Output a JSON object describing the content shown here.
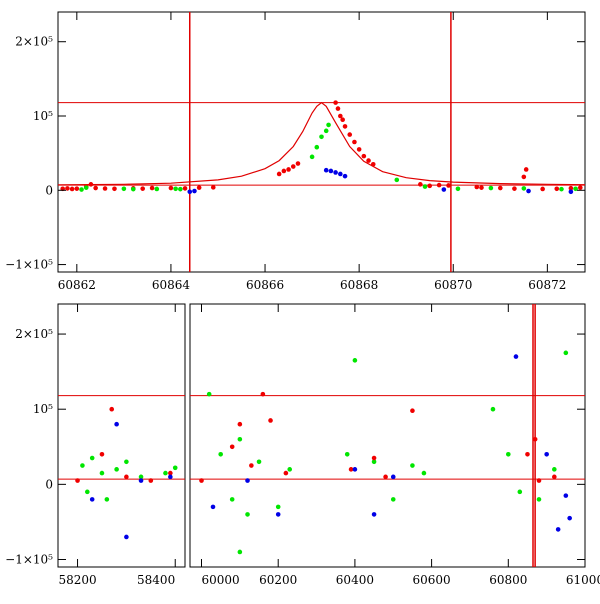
{
  "chart_data": [
    {
      "type": "scatter",
      "xlim": [
        60861.6,
        60872.8
      ],
      "ylim": [
        -110000,
        240000
      ],
      "x_ticks": [
        60862,
        60864,
        60866,
        60868,
        60870,
        60872
      ],
      "x_tick_labels": [
        "60862",
        "60864",
        "60866",
        "60868",
        "60870",
        "60872"
      ],
      "y_ticks": [
        -100000,
        0,
        100000,
        200000
      ],
      "y_tick_labels": [
        "−1×10⁵",
        "0",
        "10⁵",
        "2×10⁵"
      ],
      "colors": {
        "g": "#00e600",
        "r": "#f00000",
        "b": "#0000e6",
        "model": "#e00000"
      },
      "hlines": [
        118000,
        7000
      ],
      "vlines": [
        60864.4,
        60869.95
      ],
      "model_curve": {
        "type": "lorentzian",
        "x": [
          60861.6,
          60863,
          60864,
          60865,
          60865.5,
          60866,
          60866.3,
          60866.6,
          60866.8,
          60867,
          60867.1,
          60867.2,
          60867.3,
          60867.5,
          60867.8,
          60868.1,
          60868.5,
          60869,
          60869.5,
          60870,
          60871,
          60872,
          60872.8
        ],
        "y": [
          7400,
          8000,
          9500,
          14000,
          19000,
          29000,
          40000,
          59000,
          79000,
          104000,
          113000,
          118000,
          113000,
          91000,
          59000,
          39000,
          25000,
          17000,
          13000,
          11000,
          9000,
          8000,
          7500
        ]
      },
      "series": [
        {
          "color": "r",
          "points": [
            [
              60861.7,
              2000
            ],
            [
              60861.8,
              2500
            ],
            [
              60861.9,
              1800
            ],
            [
              60862.0,
              2200
            ],
            [
              60862.2,
              5000
            ],
            [
              60862.3,
              8000
            ],
            [
              60862.4,
              3000
            ],
            [
              60862.6,
              2400
            ],
            [
              60862.8,
              2000
            ],
            [
              60863.2,
              2600
            ],
            [
              60863.4,
              2200
            ],
            [
              60863.6,
              3000
            ],
            [
              60864.0,
              3000
            ],
            [
              60864.3,
              2500
            ],
            [
              60864.6,
              3500
            ],
            [
              60864.9,
              4000
            ],
            [
              60866.3,
              22000
            ],
            [
              60866.4,
              26000
            ],
            [
              60866.5,
              28000
            ],
            [
              60866.6,
              32000
            ],
            [
              60866.7,
              36000
            ],
            [
              60867.5,
              118000
            ],
            [
              60867.55,
              110000
            ],
            [
              60867.6,
              100000
            ],
            [
              60867.65,
              95000
            ],
            [
              60867.7,
              86000
            ],
            [
              60867.8,
              75000
            ],
            [
              60867.9,
              65000
            ],
            [
              60868.0,
              55000
            ],
            [
              60868.1,
              46000
            ],
            [
              60868.2,
              40000
            ],
            [
              60868.3,
              35000
            ],
            [
              60869.3,
              8000
            ],
            [
              60869.5,
              6000
            ],
            [
              60869.7,
              7000
            ],
            [
              60869.9,
              6500
            ],
            [
              60870.5,
              4500
            ],
            [
              60870.6,
              3500
            ],
            [
              60871.0,
              3000
            ],
            [
              60871.3,
              2200
            ],
            [
              60871.5,
              18000
            ],
            [
              60871.55,
              28000
            ],
            [
              60871.9,
              1800
            ],
            [
              60872.2,
              2000
            ],
            [
              60872.5,
              2800
            ],
            [
              60872.7,
              3500
            ]
          ]
        },
        {
          "color": "g",
          "points": [
            [
              60862.1,
              1000
            ],
            [
              60862.2,
              3500
            ],
            [
              60863.0,
              2000
            ],
            [
              60863.2,
              1500
            ],
            [
              60863.7,
              1800
            ],
            [
              60864.1,
              2000
            ],
            [
              60864.2,
              1500
            ],
            [
              60867.0,
              45000
            ],
            [
              60867.1,
              58000
            ],
            [
              60867.2,
              72000
            ],
            [
              60867.3,
              80000
            ],
            [
              60867.35,
              88000
            ],
            [
              60868.8,
              14000
            ],
            [
              60869.4,
              5000
            ],
            [
              60870.1,
              2000
            ],
            [
              60870.8,
              3000
            ],
            [
              60871.5,
              2500
            ],
            [
              60872.3,
              1500
            ],
            [
              60872.6,
              2000
            ]
          ]
        },
        {
          "color": "b",
          "points": [
            [
              60864.4,
              -2000
            ],
            [
              60864.5,
              -1000
            ],
            [
              60867.3,
              27000
            ],
            [
              60867.4,
              26000
            ],
            [
              60867.5,
              24000
            ],
            [
              60867.6,
              22000
            ],
            [
              60867.7,
              19000
            ],
            [
              60869.8,
              1000
            ],
            [
              60871.6,
              -1000
            ],
            [
              60872.5,
              -2000
            ]
          ]
        }
      ]
    },
    {
      "type": "scatter",
      "x_segments": [
        {
          "range": [
            58160,
            58420
          ],
          "ticks": [
            58200,
            58400
          ],
          "tick_labels": [
            "58200",
            "58400"
          ]
        },
        {
          "range": [
            59970,
            61000
          ],
          "ticks": [
            60000,
            60200,
            60400,
            60600,
            60800,
            61000
          ],
          "tick_labels": [
            "60000",
            "60200",
            "60400",
            "60600",
            "60800",
            "61000"
          ]
        }
      ],
      "ylim": [
        -110000,
        240000
      ],
      "y_ticks": [
        -100000,
        0,
        100000,
        200000
      ],
      "y_tick_labels": [
        "−1×10⁵",
        "0",
        "10⁵",
        "2×10⁵"
      ],
      "colors": {
        "g": "#00e600",
        "r": "#f00000",
        "b": "#0000e6",
        "model": "#e00000"
      },
      "hlines": [
        118000,
        7000
      ],
      "vlines": [
        60864.4,
        60869.95
      ],
      "series": [
        {
          "color": "g",
          "points": [
            [
              58210,
              25000
            ],
            [
              58230,
              35000
            ],
            [
              58250,
              15000
            ],
            [
              58280,
              20000
            ],
            [
              58300,
              30000
            ],
            [
              58330,
              10000
            ],
            [
              58380,
              15000
            ],
            [
              58400,
              22000
            ],
            [
              58220,
              -10000
            ],
            [
              58260,
              -20000
            ],
            [
              60020,
              120000
            ],
            [
              60050,
              40000
            ],
            [
              60080,
              -20000
            ],
            [
              60100,
              60000
            ],
            [
              60120,
              -40000
            ],
            [
              60150,
              30000
            ],
            [
              60200,
              -30000
            ],
            [
              60230,
              20000
            ],
            [
              60100,
              -90000
            ],
            [
              60380,
              40000
            ],
            [
              60400,
              165000
            ],
            [
              60450,
              30000
            ],
            [
              60500,
              -20000
            ],
            [
              60550,
              25000
            ],
            [
              60580,
              15000
            ],
            [
              60760,
              100000
            ],
            [
              60800,
              40000
            ],
            [
              60830,
              -10000
            ],
            [
              60950,
              175000
            ],
            [
              60920,
              20000
            ],
            [
              60880,
              -20000
            ]
          ]
        },
        {
          "color": "r",
          "points": [
            [
              58200,
              5000
            ],
            [
              58250,
              40000
            ],
            [
              58270,
              100000
            ],
            [
              58300,
              10000
            ],
            [
              58350,
              5000
            ],
            [
              58390,
              15000
            ],
            [
              60000,
              5000
            ],
            [
              60080,
              50000
            ],
            [
              60100,
              80000
            ],
            [
              60130,
              25000
            ],
            [
              60160,
              120000
            ],
            [
              60180,
              85000
            ],
            [
              60220,
              15000
            ],
            [
              60390,
              20000
            ],
            [
              60450,
              35000
            ],
            [
              60480,
              10000
            ],
            [
              60550,
              98000
            ],
            [
              60850,
              40000
            ],
            [
              60870,
              60000
            ],
            [
              60920,
              10000
            ],
            [
              60880,
              5000
            ]
          ]
        },
        {
          "color": "b",
          "points": [
            [
              58230,
              -20000
            ],
            [
              58280,
              80000
            ],
            [
              58300,
              -70000
            ],
            [
              58330,
              5000
            ],
            [
              58390,
              10000
            ],
            [
              60030,
              -30000
            ],
            [
              60120,
              5000
            ],
            [
              60200,
              -40000
            ],
            [
              60400,
              20000
            ],
            [
              60450,
              -40000
            ],
            [
              60500,
              10000
            ],
            [
              60820,
              170000
            ],
            [
              60900,
              40000
            ],
            [
              60930,
              -60000
            ],
            [
              60960,
              -45000
            ],
            [
              60950,
              -15000
            ]
          ]
        }
      ]
    }
  ]
}
